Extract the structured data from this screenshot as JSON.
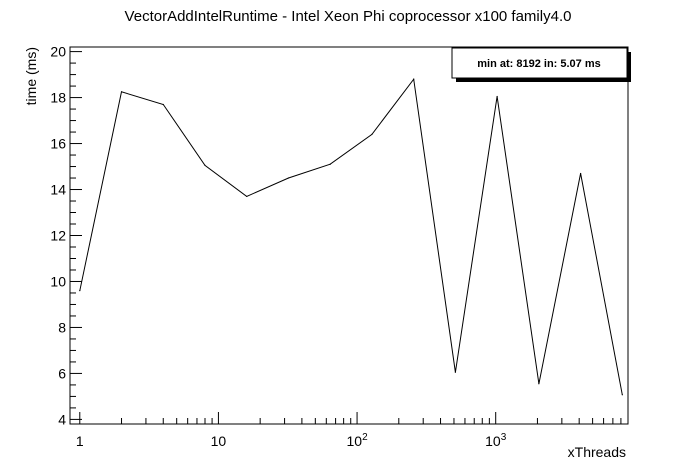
{
  "chart_data": {
    "type": "line",
    "title": "VectorAddIntelRuntime - Intel Xeon Phi coprocessor x100 family4.0",
    "xlabel": "xThreads",
    "ylabel": "time (ms)",
    "xscale": "log",
    "xlim": [
      0.85,
      9000
    ],
    "ylim": [
      3.8,
      20.2
    ],
    "x_ticks": [
      {
        "value": 1,
        "label": "1"
      },
      {
        "value": 10,
        "label": "10"
      },
      {
        "value": 100,
        "base": "10",
        "exp": "2"
      },
      {
        "value": 1000,
        "base": "10",
        "exp": "3"
      }
    ],
    "y_ticks": [
      4,
      6,
      8,
      10,
      12,
      14,
      16,
      18,
      20
    ],
    "series": [
      {
        "x": [
          1,
          2,
          4,
          8,
          16,
          32,
          64,
          128,
          256,
          512,
          1024,
          2048,
          4096,
          8192
        ],
        "y": [
          9.6,
          18.25,
          17.7,
          15.05,
          13.7,
          14.5,
          15.1,
          16.4,
          18.8,
          6.05,
          18.05,
          5.55,
          14.7,
          5.07
        ],
        "color": "#000000"
      }
    ],
    "stats_box": {
      "text": "min at: 8192 in: 5.07 ms",
      "position": "top-right"
    },
    "grid": false
  }
}
